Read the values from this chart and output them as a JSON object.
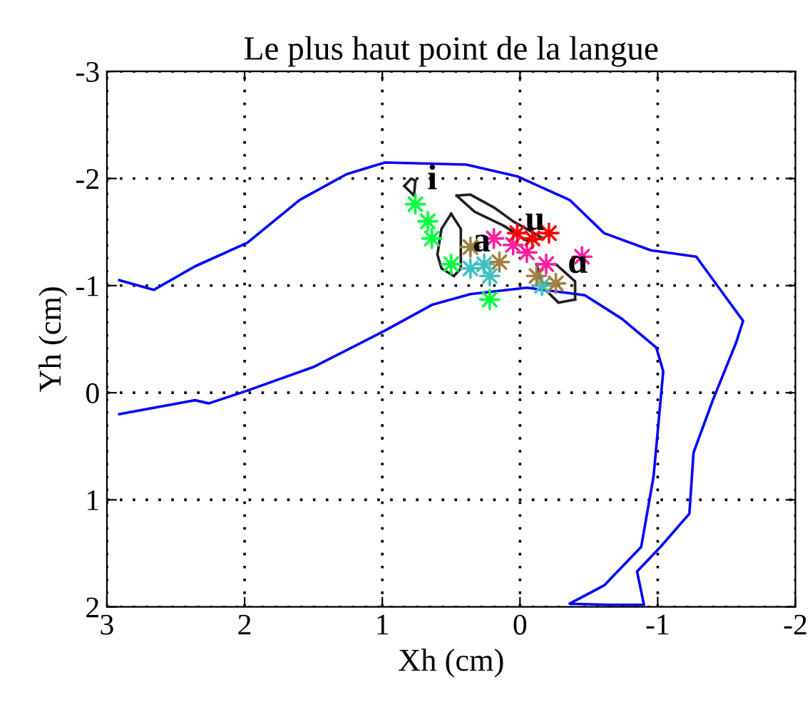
{
  "chart_data": {
    "type": "line",
    "title": "Le plus haut point de la langue",
    "xlabel": "Xh (cm)",
    "ylabel": "Yh (cm)",
    "xlim": [
      3,
      -2
    ],
    "ylim": [
      2,
      -3
    ],
    "xticks": [
      3,
      2,
      1,
      0,
      -1,
      -2
    ],
    "yticks": [
      -3,
      -2,
      -1,
      0,
      1,
      2
    ],
    "grid": true,
    "legend": false,
    "series": [
      {
        "color": "#0000ff",
        "x": [
          2.91,
          2.66,
          2.36,
          1.98,
          1.6,
          1.26,
          0.98,
          0.39,
          0.02,
          -0.36,
          -0.61,
          -0.95,
          -1.28,
          -1.62,
          -1.57,
          -1.4,
          -1.26,
          -1.23,
          -1.02,
          -0.85,
          -0.9,
          -0.64,
          -0.36,
          -0.61,
          -0.88,
          -0.97,
          -1.04,
          -0.99,
          -0.74,
          -0.47,
          -0.05,
          0.36,
          0.64,
          0.98,
          1.5,
          1.98,
          2.26,
          2.36,
          2.91
        ],
        "values": [
          -1.05,
          -0.96,
          -1.18,
          -1.4,
          -1.8,
          -2.04,
          -2.15,
          -2.13,
          -2.02,
          -1.8,
          -1.49,
          -1.33,
          -1.27,
          -0.67,
          -0.47,
          0.07,
          0.56,
          1.13,
          1.44,
          1.67,
          1.98,
          1.98,
          1.97,
          1.8,
          1.44,
          0.78,
          -0.2,
          -0.42,
          -0.69,
          -0.91,
          -0.98,
          -0.92,
          -0.82,
          -0.58,
          -0.24,
          -0.02,
          0.1,
          0.07,
          0.2
        ]
      },
      {
        "color": "#202020",
        "x": [
          0.84,
          0.79,
          0.76
        ],
        "values": [
          -1.93,
          -2.0,
          -1.98
        ]
      },
      {
        "color": "#202020",
        "x": [
          0.84,
          0.77,
          0.76
        ],
        "values": [
          -1.93,
          -1.84,
          -1.98
        ]
      },
      {
        "color": "#202020",
        "x": [
          0.46,
          0.36,
          0.19,
          0.05,
          -0.17
        ],
        "values": [
          -1.84,
          -1.85,
          -1.73,
          -1.6,
          -1.44
        ]
      },
      {
        "color": "#202020",
        "x": [
          0.46,
          0.33,
          0.12,
          -0.05,
          -0.17
        ],
        "values": [
          -1.84,
          -1.69,
          -1.56,
          -1.42,
          -1.44
        ]
      },
      {
        "color": "#202020",
        "x": [
          0.5,
          0.57,
          0.6,
          0.57,
          0.48
        ],
        "values": [
          -1.67,
          -1.53,
          -1.29,
          -1.16,
          -1.09
        ]
      },
      {
        "color": "#202020",
        "x": [
          0.5,
          0.43,
          0.43,
          0.43,
          0.48
        ],
        "values": [
          -1.67,
          -1.53,
          -1.4,
          -1.16,
          -1.09
        ]
      },
      {
        "color": "#202020",
        "x": [
          -0.12,
          -0.26,
          -0.4,
          -0.4
        ],
        "values": [
          -1.2,
          -1.2,
          -1.04,
          -0.87
        ]
      },
      {
        "color": "#202020",
        "x": [
          -0.12,
          -0.17,
          -0.28,
          -0.4
        ],
        "values": [
          -1.2,
          -0.98,
          -0.84,
          -0.87
        ]
      },
      {
        "type": "scatter",
        "marker": "star",
        "color": "#00ff40",
        "x": [
          0.76,
          0.67,
          0.64,
          0.5,
          0.22
        ],
        "values": [
          -1.76,
          -1.6,
          -1.44,
          -1.2,
          -0.87
        ]
      },
      {
        "type": "scatter",
        "marker": "star",
        "color": "#40c0c0",
        "x": [
          0.36,
          0.22,
          0.26,
          -0.16
        ],
        "values": [
          -1.16,
          -1.09,
          -1.2,
          -1.0
        ]
      },
      {
        "type": "scatter",
        "marker": "star",
        "color": "#a08040",
        "x": [
          0.36,
          0.15,
          -0.12,
          -0.26
        ],
        "values": [
          -1.36,
          -1.22,
          -1.09,
          -1.02
        ]
      },
      {
        "type": "scatter",
        "marker": "star",
        "color": "#ff20a0",
        "x": [
          0.19,
          0.05,
          -0.05,
          -0.19,
          -0.45
        ],
        "values": [
          -1.44,
          -1.38,
          -1.31,
          -1.2,
          -1.27
        ]
      },
      {
        "type": "scatter",
        "marker": "star",
        "color": "#ff0000",
        "x": [
          0.02,
          -0.09,
          -0.21
        ],
        "values": [
          -1.49,
          -1.44,
          -1.49
        ]
      }
    ],
    "annotations": [
      {
        "text": "i",
        "x": 0.76,
        "y": -1.98
      },
      {
        "text": "a",
        "x": 0.43,
        "y": -1.4
      },
      {
        "text": "u",
        "x": 0.05,
        "y": -1.6
      },
      {
        "text": "ɑ",
        "x": -0.26,
        "y": -1.2
      }
    ]
  }
}
